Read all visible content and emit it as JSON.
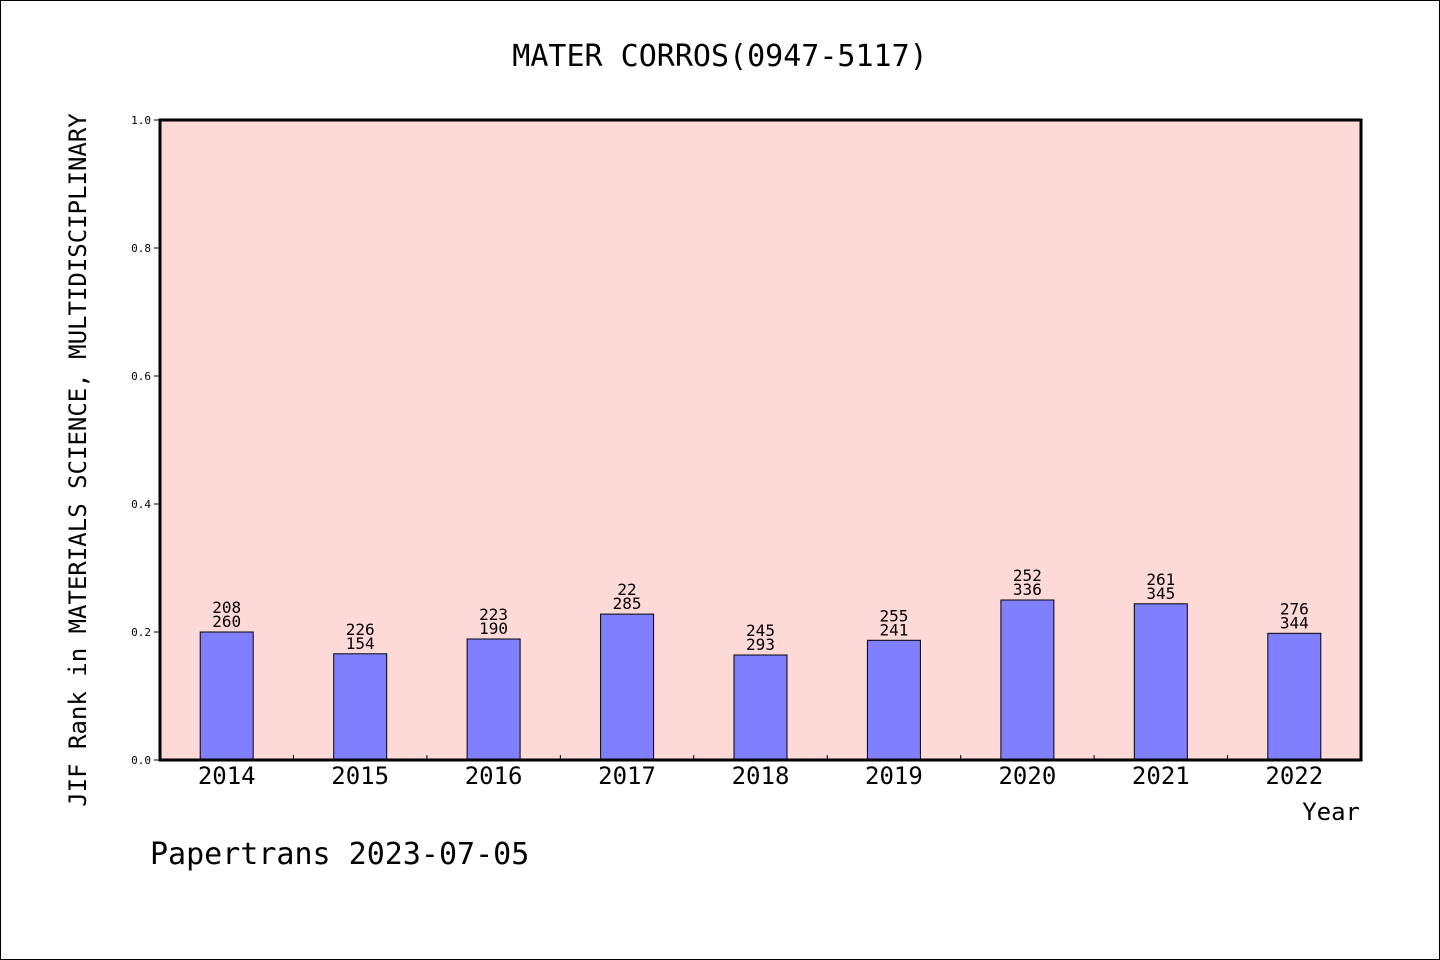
{
  "colors": {
    "plot_background": "#fddad8",
    "bar_fill": "#8080ff",
    "bar_stroke": "#000000",
    "axis": "#000000"
  },
  "footer": "Papertrans 2023-07-05",
  "chart_data": {
    "type": "bar",
    "title": "MATER CORROS(0947-5117)",
    "xlabel": "Year",
    "ylabel": "JIF Rank in MATERIALS SCIENCE, MULTIDISCIPLINARY",
    "ylim": [
      0,
      1.0
    ],
    "yticks": [
      "0.0",
      "0.2",
      "0.4",
      "0.6",
      "0.8",
      "1.0"
    ],
    "grid": false,
    "categories": [
      "2014",
      "2015",
      "2016",
      "2017",
      "2018",
      "2019",
      "2020",
      "2021",
      "2022"
    ],
    "values": [
      0.2,
      0.166,
      0.189,
      0.228,
      0.164,
      0.187,
      0.25,
      0.244,
      0.198
    ],
    "rank_top": [
      "208",
      "226",
      "223",
      "22",
      "245",
      "255",
      "252",
      "261",
      "276"
    ],
    "rank_bottom": [
      "260",
      "154",
      "190",
      "285",
      "293",
      "241",
      "336",
      "345",
      "344"
    ]
  }
}
